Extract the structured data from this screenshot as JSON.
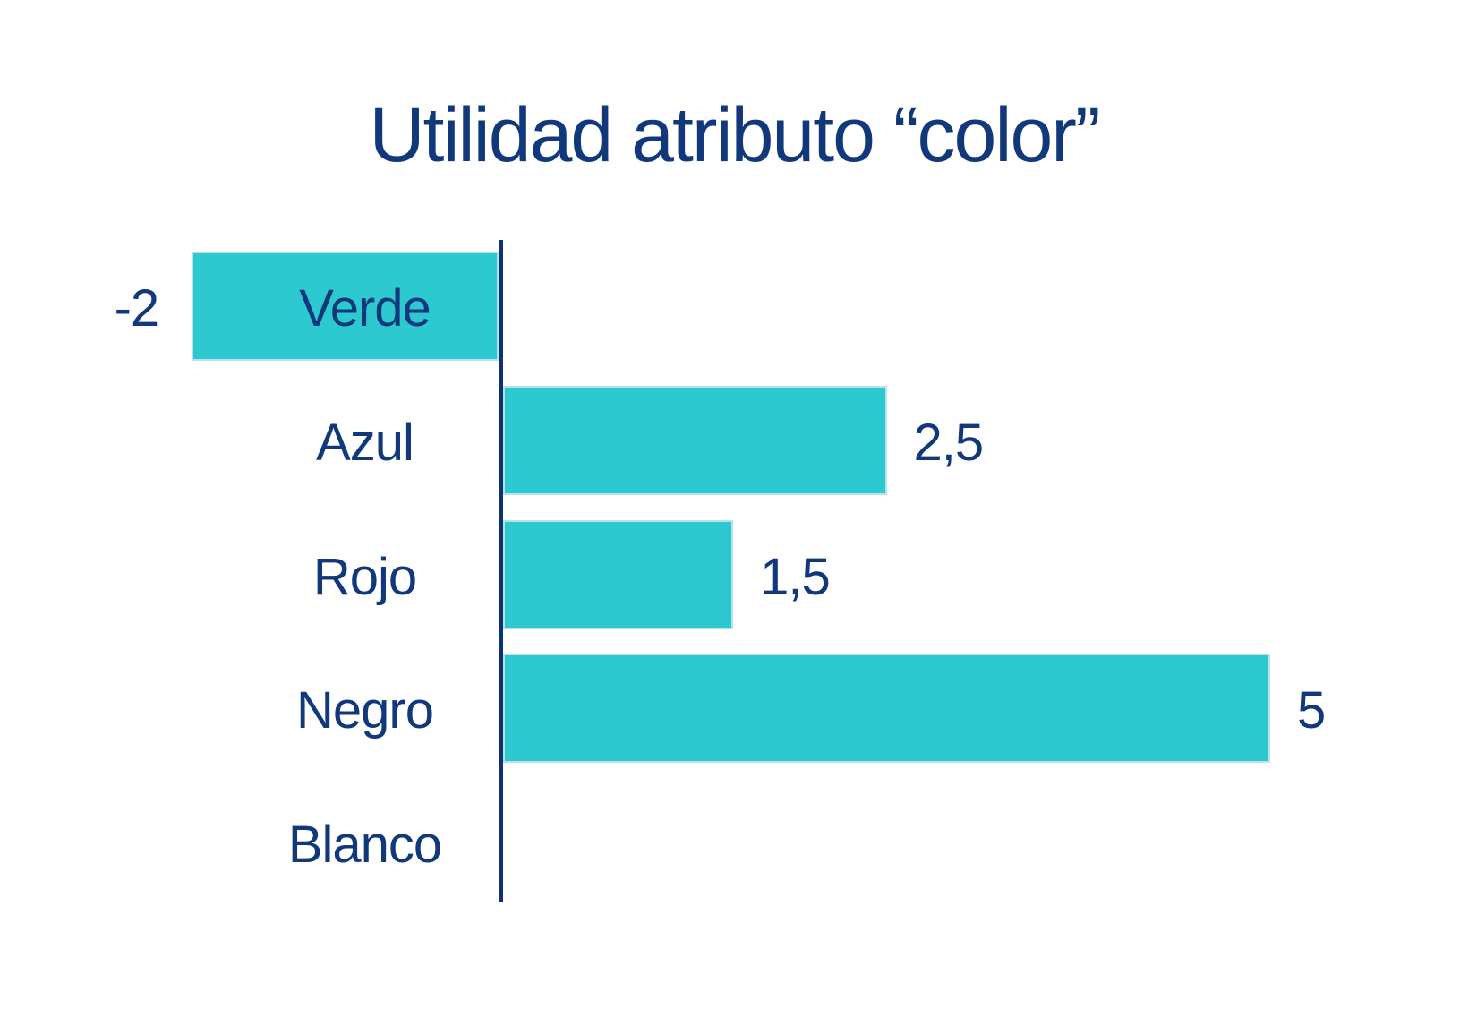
{
  "title": "Utilidad atributo “color”",
  "colors": {
    "bar_fill": "#2cc9d1",
    "bar_border": "#b8e2ec",
    "text_navy": "#10387a",
    "axis_navy": "#0d3373",
    "background": "#ffffff"
  },
  "chart_data": {
    "type": "bar",
    "orientation": "horizontal",
    "title": "Utilidad atributo “color”",
    "xlabel": "",
    "ylabel": "",
    "categories": [
      "Verde",
      "Azul",
      "Rojo",
      "Negro",
      "Blanco"
    ],
    "values": [
      -2,
      2.5,
      1.5,
      5,
      0
    ],
    "value_labels": [
      "-2",
      "2,5",
      "1,5",
      "5",
      ""
    ],
    "xlim": [
      -2,
      5
    ],
    "grid": false,
    "legend": false,
    "axis_note": "vertical zero baseline between negative and positive bars"
  }
}
